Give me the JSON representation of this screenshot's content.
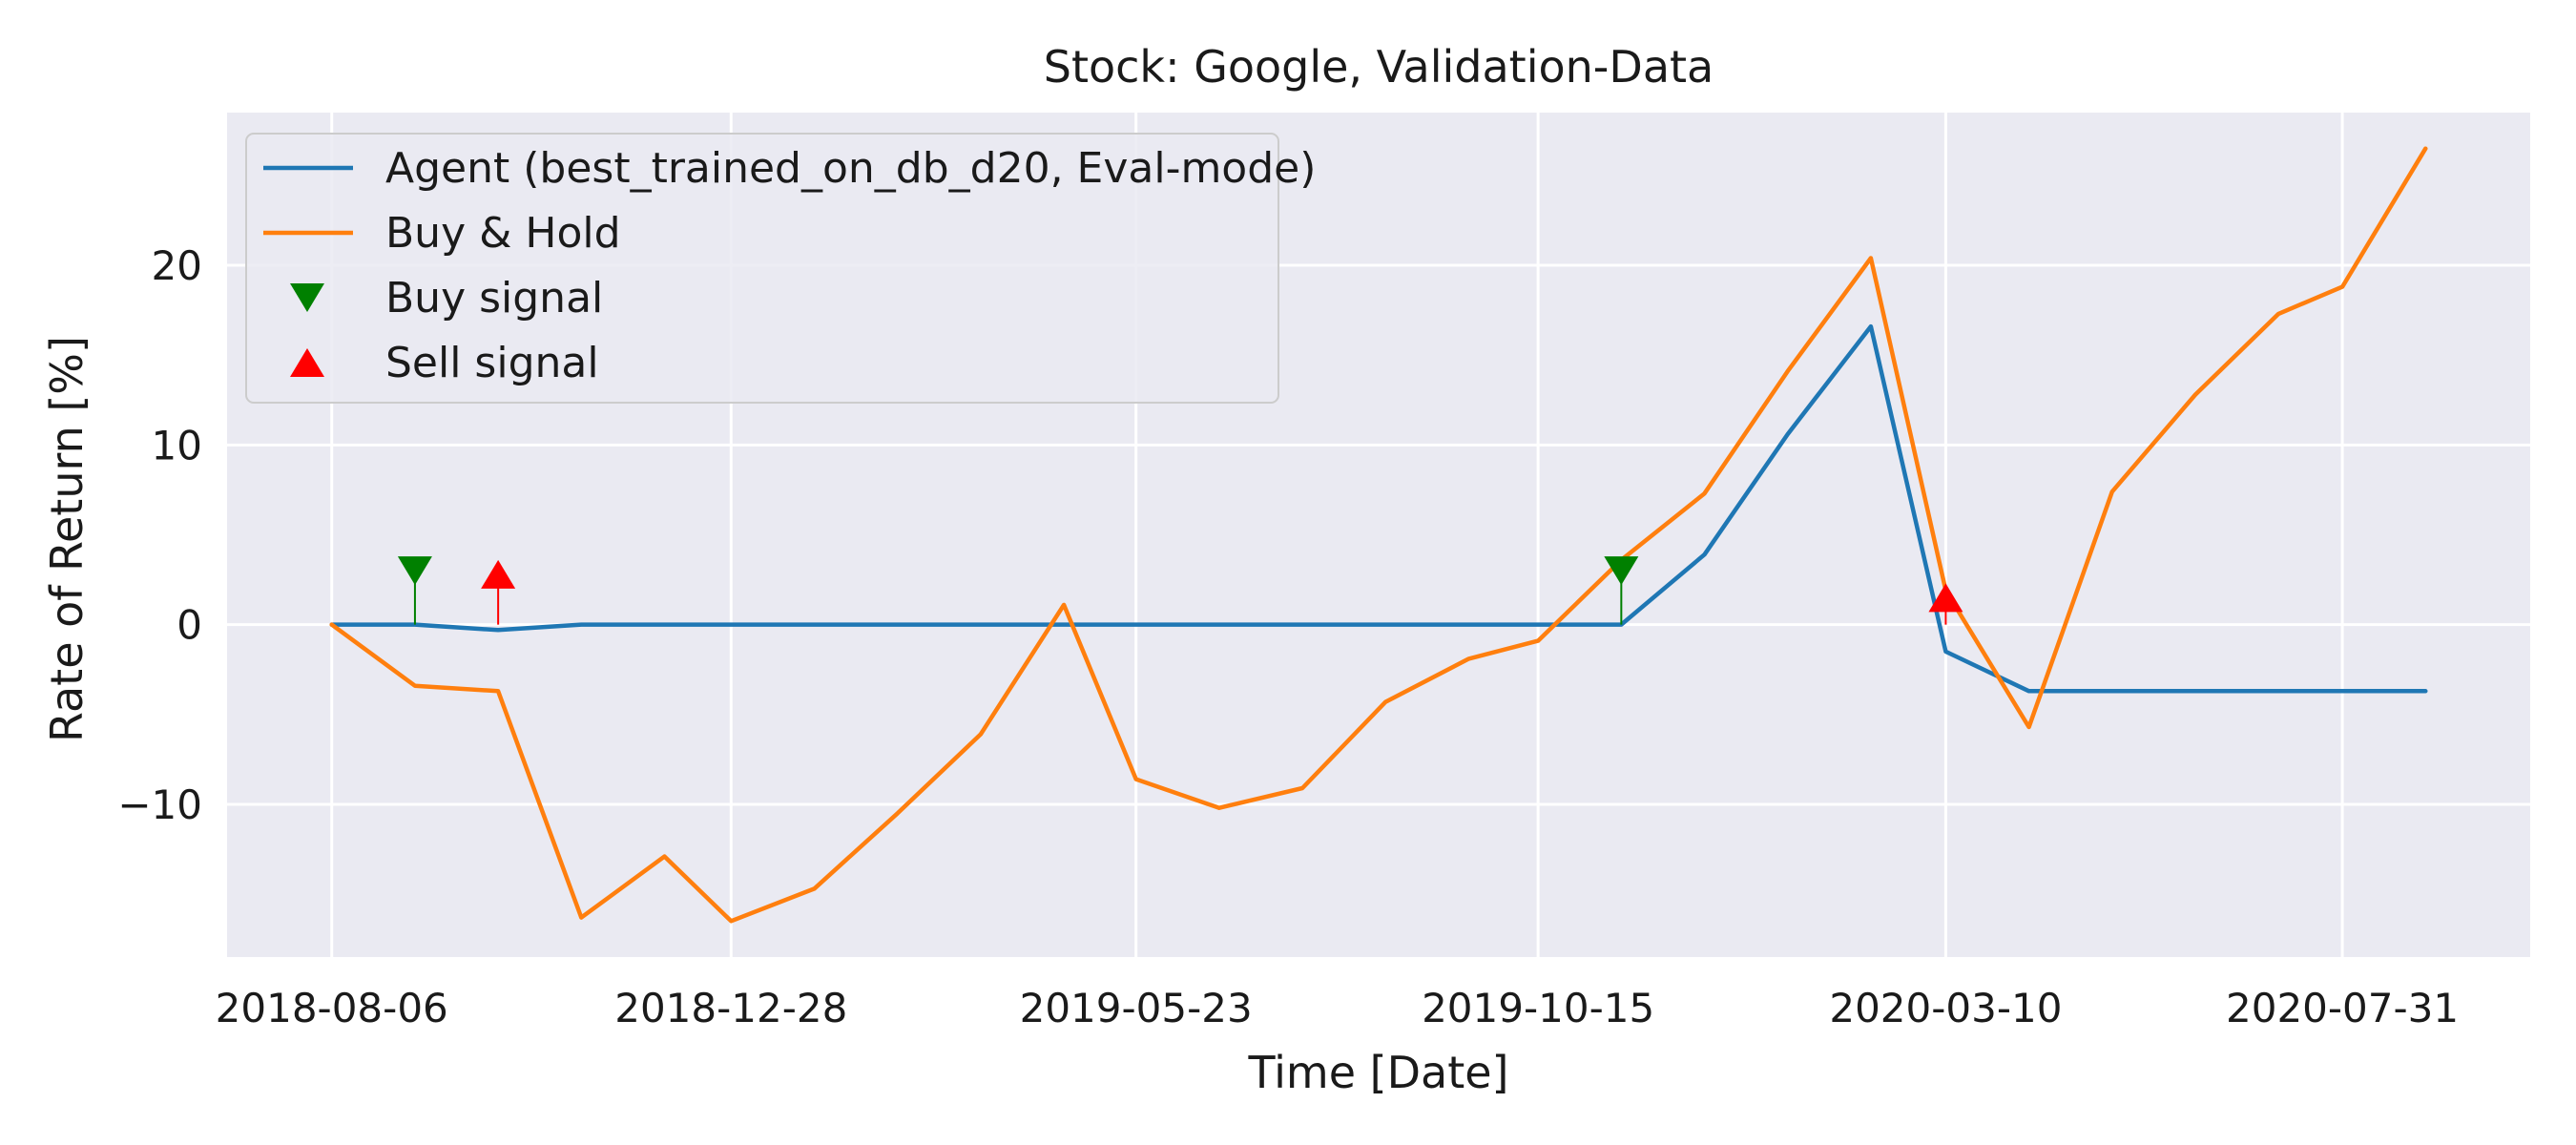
{
  "chart_data": {
    "type": "line",
    "title": "Stock: Google, Validation-Data",
    "xlabel": "Time [Date]",
    "ylabel": "Rate of Return [%]",
    "x": [
      "2018-08-06",
      "2018-09-05",
      "2018-10-05",
      "2018-11-04",
      "2018-12-04",
      "2018-12-28",
      "2019-01-27",
      "2019-02-26",
      "2019-03-28",
      "2019-04-27",
      "2019-05-23",
      "2019-06-22",
      "2019-07-22",
      "2019-08-21",
      "2019-09-20",
      "2019-10-15",
      "2019-11-14",
      "2019-12-14",
      "2020-01-13",
      "2020-02-12",
      "2020-03-10",
      "2020-04-09",
      "2020-05-09",
      "2020-06-08",
      "2020-07-08",
      "2020-07-31",
      "2020-08-30"
    ],
    "x_ticks": [
      "2018-08-06",
      "2018-12-28",
      "2019-05-23",
      "2019-10-15",
      "2020-03-10",
      "2020-07-31"
    ],
    "ylim": [
      -18.5,
      28.5
    ],
    "y_ticks": [
      -10,
      0,
      10,
      20
    ],
    "grid": true,
    "legend_position": "top-left",
    "series": [
      {
        "name": "Agent (best_trained_on_db_d20, Eval-mode)",
        "color": "#1f77b4",
        "values": [
          0,
          0,
          -0.3,
          0,
          0,
          0,
          0,
          0,
          0,
          0,
          0,
          0,
          0,
          0,
          0,
          0,
          0,
          3.9,
          10.6,
          16.6,
          -1.5,
          -3.7,
          -3.7,
          -3.7,
          -3.7,
          -3.7,
          -3.7
        ]
      },
      {
        "name": "Buy & Hold",
        "color": "#ff7f0e",
        "values": [
          0,
          -3.4,
          -3.7,
          -16.3,
          -12.9,
          -16.5,
          -14.7,
          -10.5,
          -6.1,
          1.1,
          -8.6,
          -10.2,
          -9.1,
          -4.3,
          -1.9,
          -0.9,
          3.6,
          7.3,
          14.1,
          20.4,
          1.9,
          -5.7,
          7.4,
          12.8,
          17.3,
          18.8,
          26.5
        ]
      }
    ],
    "buy_signals": {
      "name": "Buy signal",
      "color": "#008000",
      "points": [
        {
          "date": "2018-09-05",
          "value": 3.0
        },
        {
          "date": "2019-11-14",
          "value": 3.0
        }
      ]
    },
    "sell_signals": {
      "name": "Sell signal",
      "color": "#ff0000",
      "points": [
        {
          "date": "2018-10-05",
          "value": 2.8
        },
        {
          "date": "2020-03-10",
          "value": 1.5
        }
      ]
    }
  },
  "colors": {
    "plot_background": "#eaeaf2",
    "grid": "#ffffff"
  }
}
